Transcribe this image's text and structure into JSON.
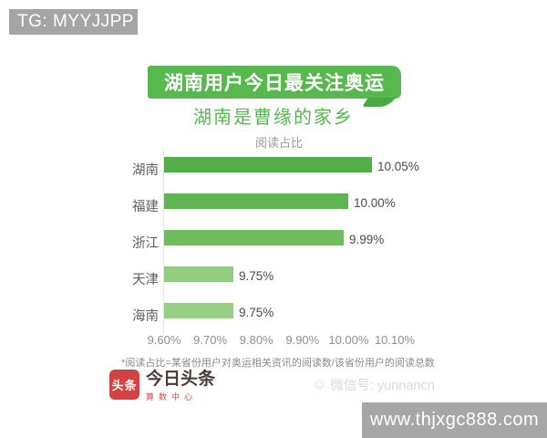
{
  "overlays": {
    "tg_banner": "TG: MYYJJPP",
    "site_banner": "www.thjxgc888.com"
  },
  "infographic": {
    "title": "湖南用户今日最关注奥运",
    "subtitle": "湖南是曹缘的家乡",
    "footnote": "*阅读占比=某省份用户对奥运相关资讯的阅读数/该省份用户的阅读总数",
    "logo": {
      "badge": "头条",
      "name": "今日头条",
      "department": "算数中心"
    },
    "watermark": {
      "icon": "smiley-icon",
      "text": "微信号: yunnancn"
    }
  },
  "chart_data": {
    "type": "bar",
    "orientation": "horizontal",
    "title": "湖南用户今日最关注奥运",
    "subtitle": "湖南是曹缘的家乡",
    "value_axis_label": "阅读占比",
    "categories": [
      "湖南",
      "福建",
      "浙江",
      "天津",
      "海南"
    ],
    "values": [
      10.05,
      10.0,
      9.99,
      9.75,
      9.75
    ],
    "value_labels": [
      "10.05%",
      "10.00%",
      "9.99%",
      "9.75%",
      "9.75%"
    ],
    "x_ticks": [
      "9.60%",
      "9.70%",
      "9.80%",
      "9.90%",
      "10.00%",
      "10.10%"
    ],
    "xlim": [
      9.6,
      10.1
    ],
    "grid": false,
    "legend": "none",
    "bar_colors": [
      "#53ad49",
      "#5fb552",
      "#6fbd5f",
      "#93cd80",
      "#98cf86"
    ],
    "accent_color": "#57b84e"
  }
}
